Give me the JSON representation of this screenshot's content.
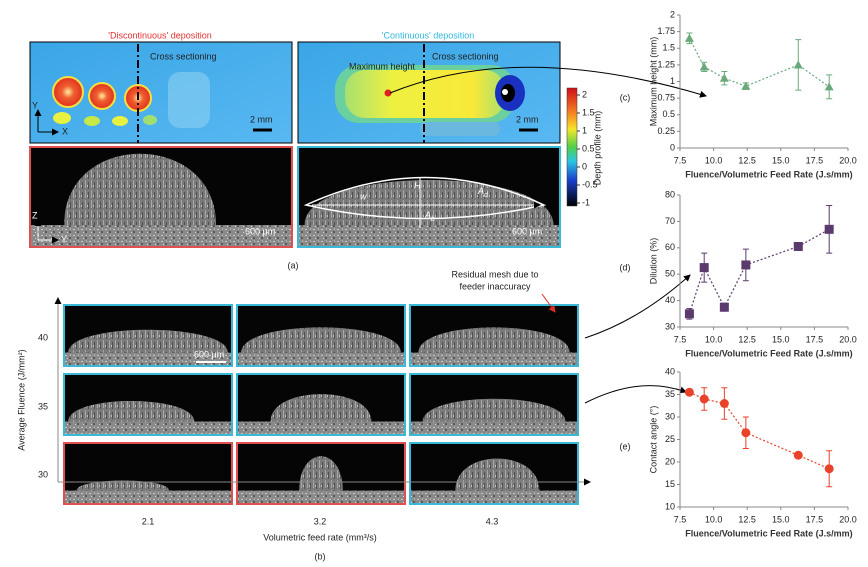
{
  "panel_a": {
    "left_title": "'Discontinuous' deposition",
    "right_title": "'Continuous' deposition",
    "cross_sectioning": [
      "Cross sectioning",
      "Cross sectioning"
    ],
    "scale_top": [
      "2 mm",
      "2 mm"
    ],
    "max_height": "Maximum height",
    "scale_bottom": [
      "600 μm",
      "600 μm"
    ],
    "axes_top": [
      "Y",
      "X"
    ],
    "axes_bottom": [
      "Z",
      "Y"
    ],
    "width_label": "w",
    "height_label": "H",
    "area_labels": [
      {
        "base": "A",
        "sub": "d"
      },
      {
        "base": "A",
        "sub": "b"
      }
    ],
    "caption": "(a)"
  },
  "colorbar": {
    "label": "Depth profile (mm)",
    "ticks": [
      2,
      1.5,
      1,
      0.5,
      0,
      -0.5,
      -1
    ]
  },
  "panel_b": {
    "y_label": "Average Fluence (J/mm²)",
    "row_labels": [
      "40",
      "35",
      "30"
    ],
    "col_labels": [
      "2.1",
      "3.2",
      "4.3"
    ],
    "x_label": "Volumetric feed rate (mm³/s)",
    "scale": "600 μm",
    "annotation": [
      "Residual mesh due to",
      "feeder inaccuracy"
    ],
    "caption": "(b)"
  },
  "chart_data": [
    {
      "type": "scatter",
      "label": "(c)",
      "y_label": "Maximum height (mm)",
      "x_label": "Fluence/Volumetric Feed Rate (J.s/mm)",
      "x": [
        8.2,
        9.3,
        10.8,
        12.4,
        16.3,
        18.6
      ],
      "values": [
        1.65,
        1.22,
        1.05,
        0.93,
        1.25,
        0.92
      ],
      "errors": [
        0.08,
        0.07,
        0.1,
        0.05,
        0.38,
        0.18
      ],
      "color": "#6aaa7a",
      "marker": "triangle",
      "xlim": [
        7.5,
        20
      ],
      "xticks": [
        7.5,
        {
          "value": 10,
          "label": "10.0"
        },
        12.5,
        {
          "value": 15,
          "label": "15.0"
        },
        17.5,
        {
          "value": 20,
          "label": "20.0"
        }
      ],
      "ylim": [
        0,
        2
      ],
      "yticks": [
        0,
        0.25,
        0.5,
        0.75,
        1,
        1.25,
        1.5,
        1.75,
        2
      ]
    },
    {
      "type": "scatter",
      "label": "(d)",
      "y_label": "Dilution (%)",
      "x_label": "Fluence/Volumetric Feed Rate (J.s/mm)",
      "x": [
        8.2,
        9.3,
        10.8,
        12.4,
        16.3,
        18.6
      ],
      "values": [
        35,
        52.5,
        37.5,
        53.5,
        60.5,
        67
      ],
      "errors": [
        2,
        5.5,
        1.5,
        6,
        1.5,
        9
      ],
      "color": "#5b3a6e",
      "marker": "square",
      "xlim": [
        7.5,
        20
      ],
      "xticks": [
        7.5,
        {
          "value": 10,
          "label": "10.0"
        },
        12.5,
        {
          "value": 15,
          "label": "15.0"
        },
        17.5,
        {
          "value": 20,
          "label": "20.0"
        }
      ],
      "ylim": [
        30,
        80
      ],
      "yticks": [
        30,
        40,
        50,
        60,
        70,
        80
      ]
    },
    {
      "type": "scatter",
      "label": "(e)",
      "y_label": "Contact angle (°)",
      "x_label": "Fluence/Volumetric Feed Rate (J.s/mm)",
      "x": [
        8.2,
        9.3,
        10.8,
        12.4,
        16.3,
        18.6
      ],
      "values": [
        35.5,
        34,
        33,
        26.5,
        21.5,
        18.5
      ],
      "errors": [
        0.5,
        2.5,
        3.5,
        3.5,
        0.5,
        4
      ],
      "color": "#e8432a",
      "marker": "circle",
      "xlim": [
        7.5,
        20
      ],
      "xticks": [
        7.5,
        {
          "value": 10,
          "label": "10.0"
        },
        12.5,
        {
          "value": 15,
          "label": "15.0"
        },
        17.5,
        {
          "value": 20,
          "label": "20.0"
        }
      ],
      "ylim": [
        10,
        40
      ],
      "yticks": [
        10,
        15,
        20,
        25,
        30,
        35,
        40
      ]
    }
  ]
}
